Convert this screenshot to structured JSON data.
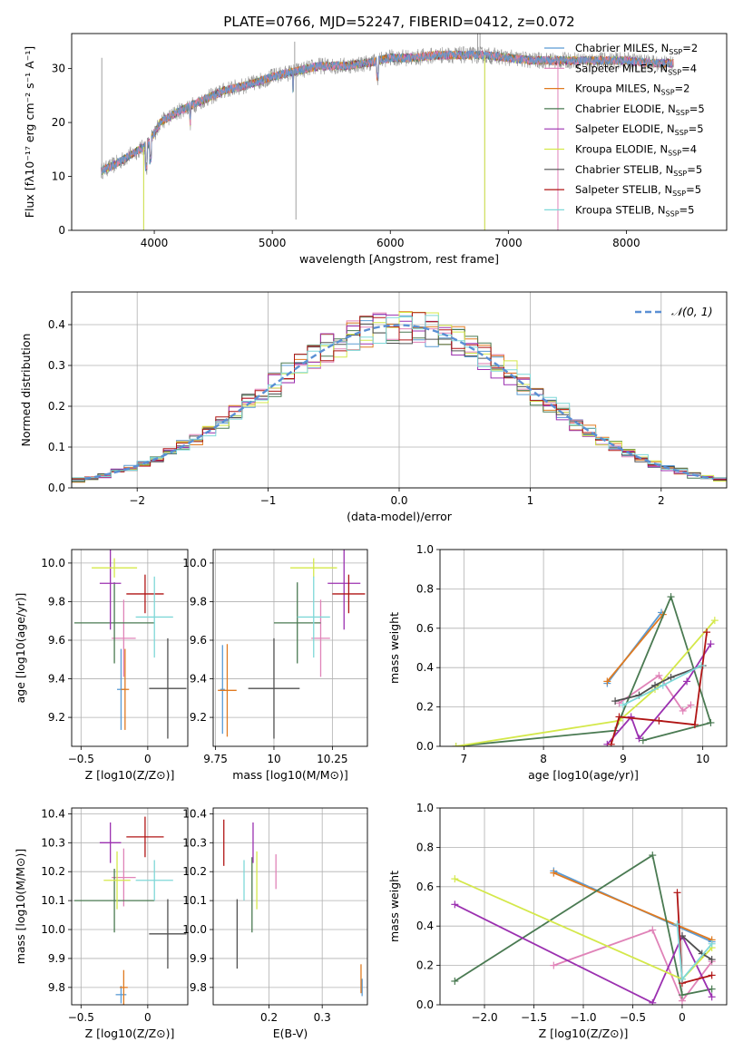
{
  "figure_title": "PLATE=0766, MJD=52247, FIBERID=0412, z=0.072",
  "colors": {
    "Chabrier MILES": "#5a9bd4",
    "Salpeter MILES": "#e083b8",
    "Kroupa MILES": "#e07a20",
    "Chabrier ELODIE": "#4a7a52",
    "Salpeter ELODIE": "#9b30b0",
    "Kroupa ELODIE": "#d4e84a",
    "Chabrier STELIB": "#505050",
    "Salpeter STELIB": "#b01515",
    "Kroupa STELIB": "#7fd8d8",
    "data": "#888888",
    "normal": "#5a8fd4"
  },
  "chart_data": [
    {
      "type": "line",
      "title": "PLATE=0766, MJD=52247, FIBERID=0412, z=0.072",
      "xlabel": "wavelength [Angstrom, rest frame]",
      "ylabel": "Flux [fλ10⁻¹⁷ erg cm⁻² s⁻¹ A⁻¹]",
      "xlim": [
        3300,
        8850
      ],
      "ylim": [
        0,
        36.5
      ],
      "xticks": [
        4000,
        5000,
        6000,
        7000,
        8000
      ],
      "yticks": [
        0,
        10,
        20,
        30
      ],
      "legend_location": "top-right",
      "legend": [
        "Chabrier MILES, N_SSP=2",
        "Salpeter MILES, N_SSP=4",
        "Kroupa MILES, N_SSP=2",
        "Chabrier ELODIE, N_SSP=5",
        "Salpeter ELODIE, N_SSP=5",
        "Kroupa ELODIE, N_SSP=4",
        "Chabrier STELIB, N_SSP=5",
        "Salpeter STELIB, N_SSP=5",
        "Kroupa STELIB, N_SSP=5"
      ],
      "continuum": {
        "x": [
          3550,
          3650,
          3800,
          3950,
          4050,
          4200,
          4400,
          4600,
          4800,
          5000,
          5200,
          5400,
          5600,
          5800,
          6000,
          6200,
          6400,
          6600,
          6800,
          7000,
          7200,
          7400,
          7600,
          7800,
          8000,
          8200,
          8400
        ],
        "y": [
          11.0,
          12.0,
          14.0,
          16.0,
          20.0,
          22.0,
          24.0,
          26.0,
          27.0,
          28.5,
          29.5,
          30.5,
          30.5,
          31.0,
          32.0,
          32.0,
          32.5,
          32.5,
          32.5,
          32.0,
          31.5,
          31.5,
          31.5,
          31.5,
          31.5,
          31.0,
          31.0
        ]
      }
    },
    {
      "type": "line",
      "xlabel": "(data-model)/error",
      "ylabel": "Normed distribution",
      "xlim": [
        -2.5,
        2.5
      ],
      "ylim": [
        0,
        0.48
      ],
      "xticks": [
        -2,
        -1,
        0,
        1,
        2
      ],
      "yticks": [
        0.0,
        0.1,
        0.2,
        0.3,
        0.4
      ],
      "legend_location": "top-right",
      "legend": [
        "N(0,1)"
      ],
      "bin_width": 0.1
    },
    {
      "type": "scatter",
      "xlabel": "Z [log10(Z/Z⊙)]",
      "ylabel": "age  [log10(age/yr)]",
      "xlim": [
        -0.57,
        0.3
      ],
      "ylim": [
        9.05,
        10.07
      ],
      "xticks": [
        -0.5,
        0.0
      ],
      "yticks": [
        9.2,
        9.4,
        9.6,
        9.8,
        10.0
      ],
      "points": [
        {
          "model": "Chabrier MILES",
          "x": -0.2,
          "xerr": 0.03,
          "y": 9.345,
          "yerr": 0.21
        },
        {
          "model": "Salpeter MILES",
          "x": -0.18,
          "xerr": 0.09,
          "y": 9.61,
          "yerr": 0.2
        },
        {
          "model": "Kroupa MILES",
          "x": -0.17,
          "xerr": 0.03,
          "y": 9.345,
          "yerr": 0.21
        },
        {
          "model": "Chabrier ELODIE",
          "x": -0.25,
          "xerr": 0.3,
          "y": 9.69,
          "yerr": 0.21
        },
        {
          "model": "Salpeter ELODIE",
          "x": -0.28,
          "xerr": 0.08,
          "y": 9.895,
          "yerr": 0.24
        },
        {
          "model": "Kroupa ELODIE",
          "x": -0.25,
          "xerr": 0.17,
          "y": 9.975,
          "yerr": 0.05
        },
        {
          "model": "Chabrier STELIB",
          "x": 0.15,
          "xerr": 0.14,
          "y": 9.35,
          "yerr": 0.26
        },
        {
          "model": "Salpeter STELIB",
          "x": -0.02,
          "xerr": 0.14,
          "y": 9.84,
          "yerr": 0.1
        },
        {
          "model": "Kroupa STELIB",
          "x": 0.05,
          "xerr": 0.14,
          "y": 9.72,
          "yerr": 0.21
        }
      ]
    },
    {
      "type": "scatter",
      "xlabel": "mass [log10(M/M⊙)]",
      "xlim": [
        9.74,
        10.4
      ],
      "ylim": [
        9.05,
        10.07
      ],
      "xticks": [
        9.75,
        10.0,
        10.25
      ],
      "yticks": [
        9.2,
        9.4,
        9.6,
        9.8,
        10.0
      ],
      "points": [
        {
          "model": "Chabrier MILES",
          "x": 9.78,
          "xerr": 0.01,
          "y": 9.345,
          "yerr": 0.23
        },
        {
          "model": "Salpeter MILES",
          "x": 10.2,
          "xerr": 0.04,
          "y": 9.61,
          "yerr": 0.2
        },
        {
          "model": "Kroupa MILES",
          "x": 9.8,
          "xerr": 0.04,
          "y": 9.34,
          "yerr": 0.24
        },
        {
          "model": "Chabrier ELODIE",
          "x": 10.1,
          "xerr": 0.1,
          "y": 9.69,
          "yerr": 0.21
        },
        {
          "model": "Salpeter ELODIE",
          "x": 10.3,
          "xerr": 0.07,
          "y": 9.895,
          "yerr": 0.24
        },
        {
          "model": "Kroupa ELODIE",
          "x": 10.17,
          "xerr": 0.1,
          "y": 9.975,
          "yerr": 0.05
        },
        {
          "model": "Chabrier STELIB",
          "x": 10.0,
          "xerr": 0.11,
          "y": 9.35,
          "yerr": 0.26
        },
        {
          "model": "Salpeter STELIB",
          "x": 10.32,
          "xerr": 0.07,
          "y": 9.84,
          "yerr": 0.1
        },
        {
          "model": "Kroupa STELIB",
          "x": 10.17,
          "xerr": 0.07,
          "y": 9.72,
          "yerr": 0.21
        }
      ]
    },
    {
      "type": "line",
      "xlabel": "age  [log10(age/yr)]",
      "ylabel": "mass weight",
      "xlim": [
        6.7,
        10.3
      ],
      "ylim": [
        0,
        1.0
      ],
      "xticks": [
        7,
        8,
        9,
        10
      ],
      "yticks": [
        0.0,
        0.2,
        0.4,
        0.6,
        0.8,
        1.0
      ],
      "series": [
        {
          "name": "Chabrier MILES",
          "x": [
            8.8,
            9.48
          ],
          "y": [
            0.32,
            0.68
          ]
        },
        {
          "name": "Kroupa MILES",
          "x": [
            8.8,
            9.5
          ],
          "y": [
            0.33,
            0.67
          ]
        },
        {
          "name": "Salpeter MILES",
          "x": [
            8.95,
            9.45,
            9.75,
            9.85
          ],
          "y": [
            0.22,
            0.36,
            0.18,
            0.21
          ]
        },
        {
          "name": "Chabrier ELODIE",
          "x": [
            6.9,
            8.9,
            9.6,
            10.1,
            9.25
          ],
          "y": [
            0.0,
            0.08,
            0.76,
            0.12,
            0.03
          ]
        },
        {
          "name": "Salpeter ELODIE",
          "x": [
            8.8,
            9.1,
            9.2,
            9.8,
            10.1
          ],
          "y": [
            0.01,
            0.15,
            0.04,
            0.33,
            0.52
          ]
        },
        {
          "name": "Kroupa ELODIE",
          "x": [
            6.9,
            8.95,
            9.4,
            10.15
          ],
          "y": [
            0.0,
            0.13,
            0.29,
            0.64
          ]
        },
        {
          "name": "Chabrier STELIB",
          "x": [
            8.9,
            9.2,
            9.4,
            9.6,
            10.0
          ],
          "y": [
            0.23,
            0.26,
            0.31,
            0.35,
            0.41
          ]
        },
        {
          "name": "Salpeter STELIB",
          "x": [
            8.85,
            8.95,
            9.45,
            9.9,
            10.05
          ],
          "y": [
            0.01,
            0.15,
            0.13,
            0.11,
            0.58
          ]
        },
        {
          "name": "Kroupa STELIB",
          "x": [
            9.0,
            9.5,
            9.98
          ],
          "y": [
            0.21,
            0.31,
            0.41
          ]
        }
      ]
    },
    {
      "type": "scatter",
      "xlabel": "Z [log10(Z/Z⊙)]",
      "ylabel": "mass [log10(M/M⊙)]",
      "xlim": [
        -0.57,
        0.3
      ],
      "ylim": [
        9.74,
        10.42
      ],
      "xticks": [
        -0.5,
        0.0
      ],
      "yticks": [
        9.8,
        9.9,
        10.0,
        10.1,
        10.2,
        10.3,
        10.4
      ],
      "points": [
        {
          "model": "Chabrier MILES",
          "x": -0.2,
          "xerr": 0.04,
          "y": 9.775,
          "yerr": 0.03
        },
        {
          "model": "Salpeter MILES",
          "x": -0.18,
          "xerr": 0.09,
          "y": 10.18,
          "yerr": 0.1
        },
        {
          "model": "Kroupa MILES",
          "x": -0.18,
          "xerr": 0.03,
          "y": 9.8,
          "yerr": 0.06
        },
        {
          "model": "Chabrier ELODIE",
          "x": -0.25,
          "xerr": 0.3,
          "y": 10.1,
          "yerr": 0.11
        },
        {
          "model": "Salpeter ELODIE",
          "x": -0.28,
          "xerr": 0.08,
          "y": 10.3,
          "yerr": 0.07
        },
        {
          "model": "Kroupa ELODIE",
          "x": -0.23,
          "xerr": 0.1,
          "y": 10.17,
          "yerr": 0.1
        },
        {
          "model": "Chabrier STELIB",
          "x": 0.15,
          "xerr": 0.14,
          "y": 9.985,
          "yerr": 0.12
        },
        {
          "model": "Salpeter STELIB",
          "x": -0.02,
          "xerr": 0.14,
          "y": 10.32,
          "yerr": 0.07
        },
        {
          "model": "Kroupa STELIB",
          "x": 0.05,
          "xerr": 0.14,
          "y": 10.17,
          "yerr": 0.07
        }
      ]
    },
    {
      "type": "scatter",
      "xlabel": "E(B-V)",
      "xlim": [
        0.095,
        0.385
      ],
      "ylim": [
        9.74,
        10.42
      ],
      "xticks": [
        0.2,
        0.3
      ],
      "yticks": [
        9.8,
        9.9,
        10.0,
        10.1,
        10.2,
        10.3,
        10.4
      ],
      "points": [
        {
          "model": "Chabrier MILES",
          "x": 0.375,
          "y": 9.8,
          "yerr": 0.03
        },
        {
          "model": "Salpeter MILES",
          "x": 0.213,
          "y": 10.2,
          "yerr": 0.06
        },
        {
          "model": "Kroupa MILES",
          "x": 0.373,
          "y": 9.83,
          "yerr": 0.05
        },
        {
          "model": "Chabrier ELODIE",
          "x": 0.168,
          "y": 10.12,
          "yerr": 0.13
        },
        {
          "model": "Salpeter ELODIE",
          "x": 0.17,
          "y": 10.3,
          "yerr": 0.07
        },
        {
          "model": "Kroupa ELODIE",
          "x": 0.177,
          "y": 10.17,
          "yerr": 0.1
        },
        {
          "model": "Chabrier STELIB",
          "x": 0.14,
          "y": 9.985,
          "yerr": 0.12
        },
        {
          "model": "Salpeter STELIB",
          "x": 0.115,
          "y": 10.3,
          "yerr": 0.08
        },
        {
          "model": "Kroupa STELIB",
          "x": 0.153,
          "y": 10.17,
          "yerr": 0.07
        }
      ]
    },
    {
      "type": "line",
      "xlabel": "Z [log10(Z/Z⊙)]",
      "ylabel": "mass weight",
      "xlim": [
        -2.45,
        0.45
      ],
      "ylim": [
        0,
        1.0
      ],
      "xticks": [
        -2.0,
        -1.5,
        -1.0,
        -0.5,
        0.0
      ],
      "yticks": [
        0.0,
        0.2,
        0.4,
        0.6,
        0.8,
        1.0
      ],
      "series": [
        {
          "name": "Chabrier MILES",
          "x": [
            -1.3,
            0.3
          ],
          "y": [
            0.68,
            0.32
          ]
        },
        {
          "name": "Kroupa MILES",
          "x": [
            -1.3,
            0.3
          ],
          "y": [
            0.67,
            0.33
          ]
        },
        {
          "name": "Salpeter MILES",
          "x": [
            -1.3,
            -0.3,
            0.0,
            0.3
          ],
          "y": [
            0.2,
            0.38,
            0.02,
            0.22
          ]
        },
        {
          "name": "Chabrier ELODIE",
          "x": [
            -2.3,
            -0.3,
            0.0,
            0.3
          ],
          "y": [
            0.12,
            0.76,
            0.05,
            0.08
          ]
        },
        {
          "name": "Salpeter ELODIE",
          "x": [
            -2.3,
            -0.3,
            0.0,
            0.3
          ],
          "y": [
            0.51,
            0.01,
            0.35,
            0.04
          ]
        },
        {
          "name": "Kroupa ELODIE",
          "x": [
            -2.3,
            0.0,
            0.3
          ],
          "y": [
            0.64,
            0.13,
            0.29
          ]
        },
        {
          "name": "Chabrier STELIB",
          "x": [
            0.0,
            0.2,
            0.3
          ],
          "y": [
            0.35,
            0.26,
            0.23
          ]
        },
        {
          "name": "Salpeter STELIB",
          "x": [
            -0.05,
            0.0,
            0.3
          ],
          "y": [
            0.57,
            0.11,
            0.15
          ]
        },
        {
          "name": "Kroupa STELIB",
          "x": [
            -0.05,
            0.0,
            0.3
          ],
          "y": [
            0.41,
            0.13,
            0.31
          ]
        }
      ]
    }
  ]
}
